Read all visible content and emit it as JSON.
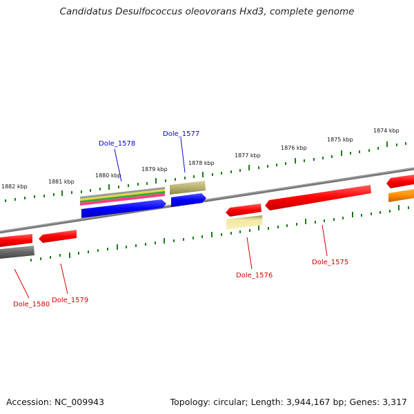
{
  "title": "Candidatus Desulfococcus oleovorans Hxd3, complete genome",
  "footer": {
    "accession": "Accession: NC_009943",
    "summary": "Topology: circular; Length: 3,944,167 bp; Genes: 3,317"
  },
  "ticks": [
    "1874 kbp",
    "1875 kbp",
    "1876 kbp",
    "1877 kbp",
    "1878 kbp",
    "1879 kbp",
    "1880 kbp",
    "1881 kbp",
    "1882 kbp"
  ],
  "genes": [
    {
      "name": "Dole_1575",
      "color": "#cc0000"
    },
    {
      "name": "Dole_1576",
      "color": "#cc0000"
    },
    {
      "name": "Dole_1577",
      "color": "#0000cc"
    },
    {
      "name": "Dole_1578",
      "color": "#0000cc"
    },
    {
      "name": "Dole_1579",
      "color": "#cc0000"
    },
    {
      "name": "Dole_1580",
      "color": "#cc0000"
    }
  ],
  "colors": {
    "backbone": "#777777",
    "ticks": "#1a7a1a",
    "cds_red": "#ff0000",
    "cds_blue": "#0000ff",
    "khaki": "#b8b070",
    "pale_yellow": "#f0e8a0",
    "orange": "#ff8c00",
    "gray": "#666666"
  }
}
